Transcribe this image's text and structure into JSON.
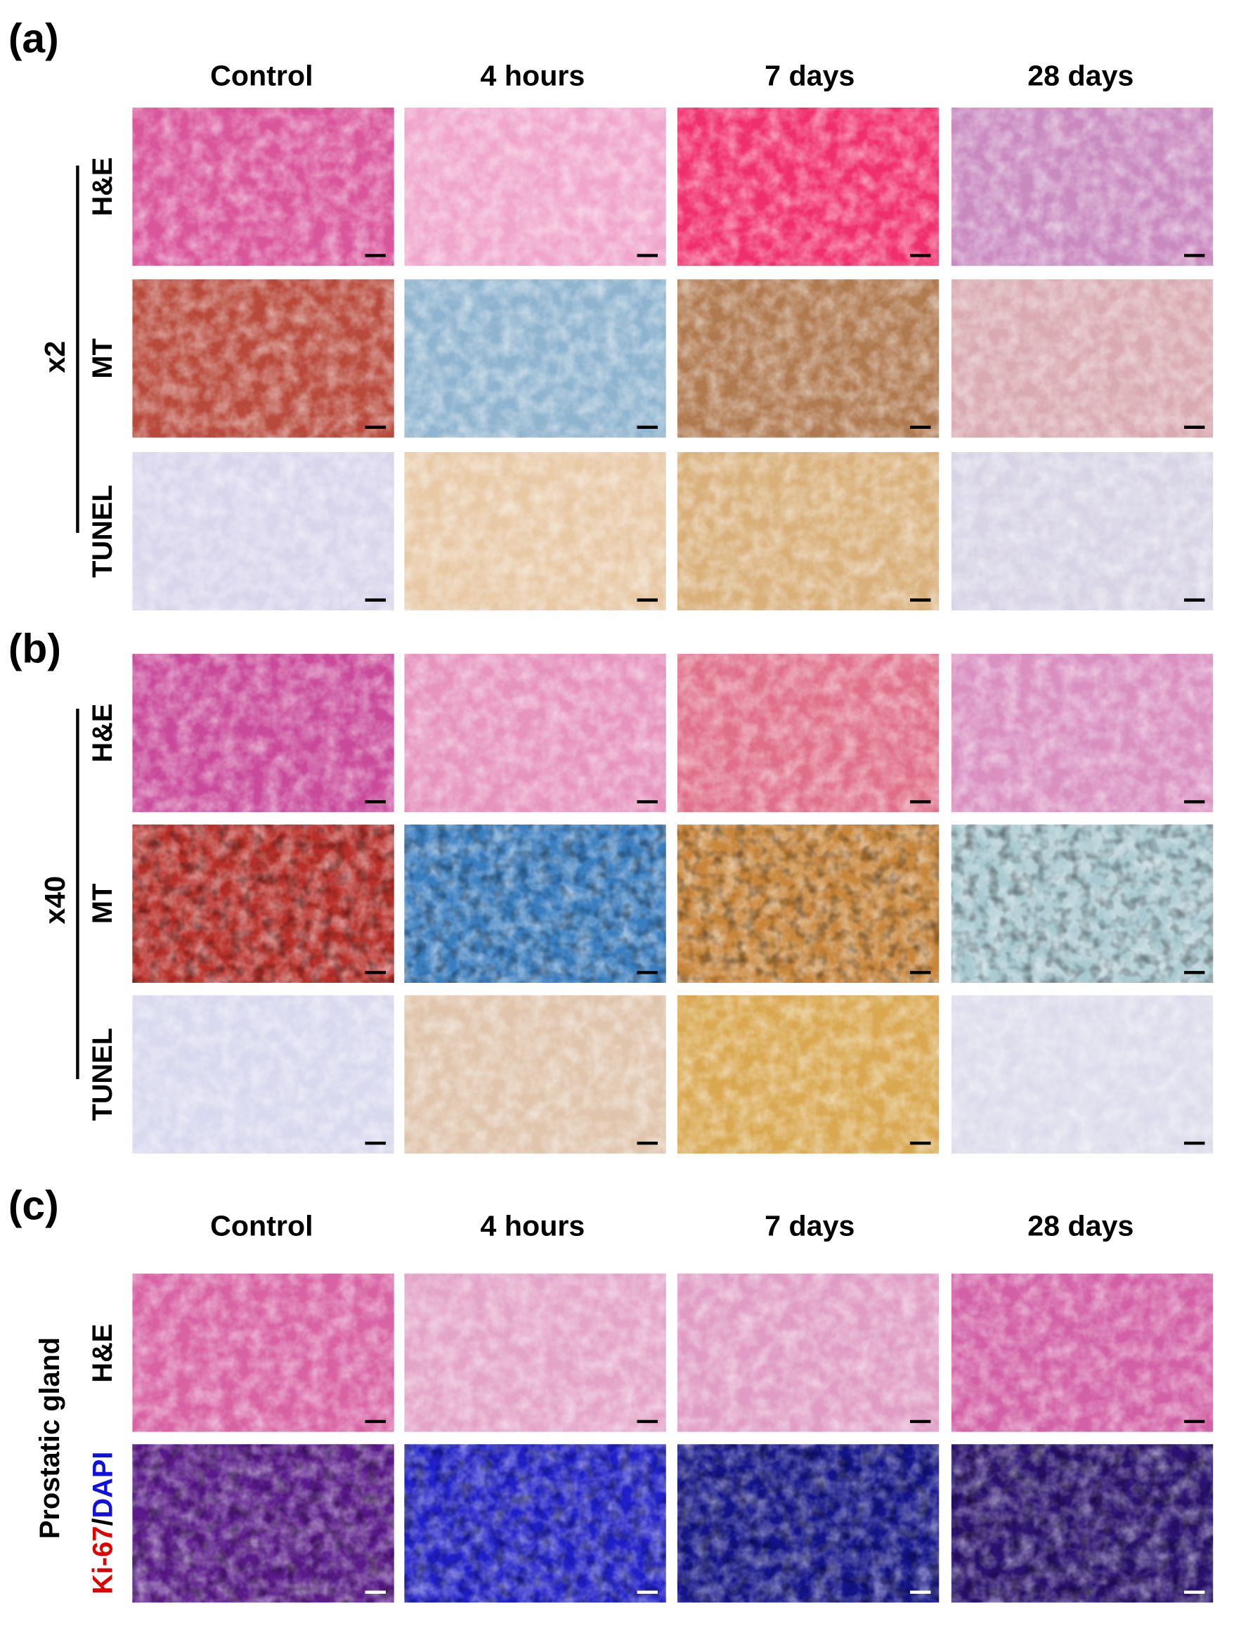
{
  "panel_a": {
    "label": "(a)",
    "columns": [
      "Control",
      "4 hours",
      "7 days",
      "28 days"
    ],
    "magnification": "x2",
    "rows": [
      "H&E",
      "MT",
      "TUNEL"
    ]
  },
  "panel_b": {
    "label": "(b)",
    "magnification": "x40",
    "rows": [
      "H&E",
      "MT",
      "TUNEL"
    ]
  },
  "panel_c": {
    "label": "(c)",
    "columns": [
      "Control",
      "4 hours",
      "7 days",
      "28 days"
    ],
    "tissue": "Prostatic gland",
    "stain": "H&E",
    "fluorescence": {
      "marker": "Ki-67",
      "separator": "/",
      "counterstain": "DAPI"
    }
  }
}
